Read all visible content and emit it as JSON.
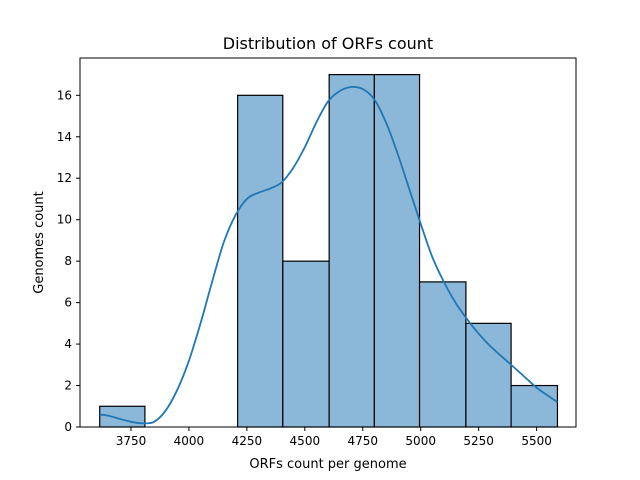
{
  "chart_data": {
    "type": "bar",
    "title": "Distribution of ORFs count",
    "xlabel": "ORFs count per genome",
    "ylabel": "Genomes count",
    "xlim": [
      3530,
      5670
    ],
    "ylim": [
      0,
      17.8
    ],
    "x_ticks": [
      3750,
      4000,
      4250,
      4500,
      4750,
      5000,
      5250,
      5500
    ],
    "y_ticks": [
      0,
      2,
      4,
      6,
      8,
      10,
      12,
      14,
      16
    ],
    "bins": [
      {
        "start": 3615,
        "end": 3810,
        "count": 1
      },
      {
        "start": 3810,
        "end": 4005,
        "count": 0
      },
      {
        "start": 4005,
        "end": 4200,
        "count": 0
      },
      {
        "start": 4210,
        "end": 4405,
        "count": 16
      },
      {
        "start": 4405,
        "end": 4605,
        "count": 8
      },
      {
        "start": 4605,
        "end": 4800,
        "count": 17
      },
      {
        "start": 4800,
        "end": 4995,
        "count": 17
      },
      {
        "start": 4995,
        "end": 5195,
        "count": 7
      },
      {
        "start": 5195,
        "end": 5390,
        "count": 5
      },
      {
        "start": 5390,
        "end": 5590,
        "count": 2
      }
    ],
    "kde": {
      "x": [
        3615,
        3650,
        3700,
        3750,
        3800,
        3850,
        3900,
        3950,
        4000,
        4050,
        4100,
        4150,
        4200,
        4250,
        4300,
        4350,
        4400,
        4450,
        4500,
        4550,
        4600,
        4650,
        4700,
        4750,
        4800,
        4850,
        4900,
        4950,
        5000,
        5050,
        5100,
        5150,
        5200,
        5250,
        5300,
        5350,
        5400,
        5450,
        5500,
        5550,
        5590
      ],
      "y": [
        0.6,
        0.55,
        0.4,
        0.25,
        0.18,
        0.25,
        0.8,
        1.8,
        3.2,
        5.0,
        7.0,
        8.9,
        10.2,
        11.0,
        11.3,
        11.5,
        11.8,
        12.5,
        13.5,
        14.7,
        15.7,
        16.2,
        16.4,
        16.3,
        15.8,
        14.7,
        13.2,
        11.5,
        9.8,
        8.2,
        7.0,
        6.0,
        5.2,
        4.5,
        3.9,
        3.4,
        2.9,
        2.4,
        1.9,
        1.5,
        1.2
      ]
    },
    "colors": {
      "bar": "#8bb7d9",
      "kde": "#1f77b4"
    },
    "grid": false,
    "legend": "none"
  }
}
